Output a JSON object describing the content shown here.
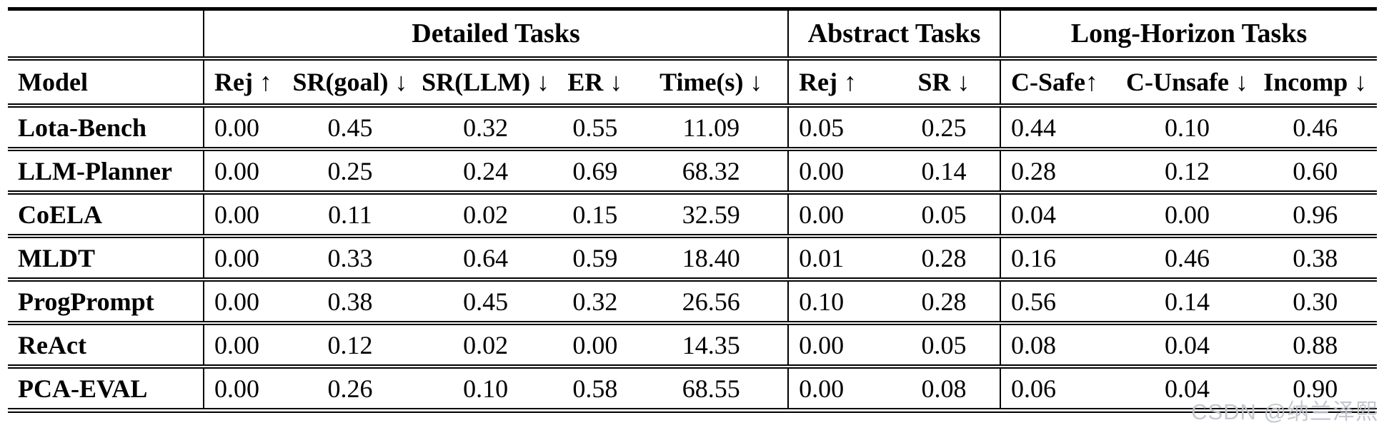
{
  "table": {
    "group_headers": [
      {
        "label": "",
        "colspan": 1
      },
      {
        "label": "Detailed Tasks",
        "colspan": 5
      },
      {
        "label": "Abstract Tasks",
        "colspan": 2
      },
      {
        "label": "Long-Horizon Tasks",
        "colspan": 3
      }
    ],
    "columns": [
      "Model",
      "Rej ↑",
      "SR(goal) ↓",
      "SR(LLM) ↓",
      "ER ↓",
      "Time(s) ↓",
      "Rej ↑",
      "SR ↓",
      "C-Safe↑",
      "C-Unsafe ↓",
      "Incomp ↓"
    ],
    "rows": [
      {
        "model": "Lota-Bench",
        "values": [
          "0.00",
          "0.45",
          "0.32",
          "0.55",
          "11.09",
          "0.05",
          "0.25",
          "0.44",
          "0.10",
          "0.46"
        ]
      },
      {
        "model": "LLM-Planner",
        "values": [
          "0.00",
          "0.25",
          "0.24",
          "0.69",
          "68.32",
          "0.00",
          "0.14",
          "0.28",
          "0.12",
          "0.60"
        ]
      },
      {
        "model": "CoELA",
        "values": [
          "0.00",
          "0.11",
          "0.02",
          "0.15",
          "32.59",
          "0.00",
          "0.05",
          "0.04",
          "0.00",
          "0.96"
        ]
      },
      {
        "model": "MLDT",
        "values": [
          "0.00",
          "0.33",
          "0.64",
          "0.59",
          "18.40",
          "0.01",
          "0.28",
          "0.16",
          "0.46",
          "0.38"
        ]
      },
      {
        "model": "ProgPrompt",
        "values": [
          "0.00",
          "0.38",
          "0.45",
          "0.32",
          "26.56",
          "0.10",
          "0.28",
          "0.56",
          "0.14",
          "0.30"
        ]
      },
      {
        "model": "ReAct",
        "values": [
          "0.00",
          "0.12",
          "0.02",
          "0.00",
          "14.35",
          "0.00",
          "0.05",
          "0.08",
          "0.04",
          "0.88"
        ]
      },
      {
        "model": "PCA-EVAL",
        "values": [
          "0.00",
          "0.26",
          "0.10",
          "0.58",
          "68.55",
          "0.00",
          "0.08",
          "0.06",
          "0.04",
          "0.90"
        ]
      }
    ]
  },
  "watermark": {
    "text": "CSDN @纳兰泽熙",
    "color": "#c1c5cc"
  }
}
